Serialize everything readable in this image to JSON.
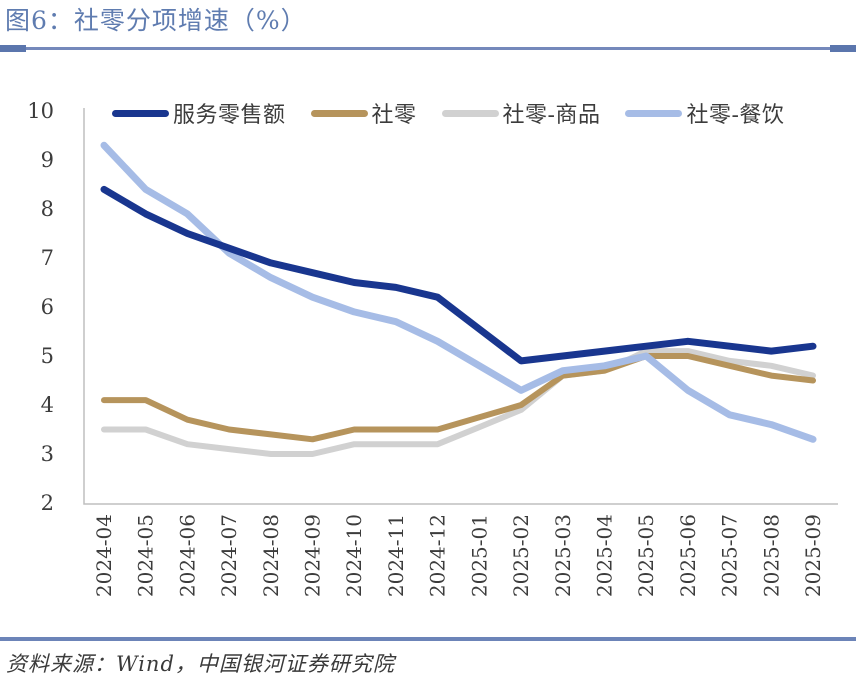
{
  "header": {
    "title": "图6：社零分项增速（%）"
  },
  "footer": {
    "source": "资料来源：Wind，中国银河证券研究院"
  },
  "colors": {
    "title_blue": "#5F7CB0",
    "divider_blue": "#7589BB",
    "divider_accent": "#5B76AD",
    "footer_rule_blue": "#6C84B8",
    "axis_line": "#BFBFBF",
    "tick_text": "#3C3C3C"
  },
  "chart_data": {
    "type": "line",
    "title": "图6：社零分项增速（%）",
    "xlabel": "",
    "ylabel": "",
    "ylim": [
      2,
      10
    ],
    "yticks": [
      2,
      3,
      4,
      5,
      6,
      7,
      8,
      9,
      10
    ],
    "grid": false,
    "legend_position": "top",
    "categories": [
      "2024-04",
      "2024-05",
      "2024-06",
      "2024-07",
      "2024-08",
      "2024-09",
      "2024-10",
      "2024-11",
      "2024-12",
      "2025-01",
      "2025-02",
      "2025-03",
      "2025-04",
      "2025-05",
      "2025-06",
      "2025-07",
      "2025-08",
      "2025-09"
    ],
    "series": [
      {
        "name": "服务零售额",
        "color": "#19368F",
        "values": [
          8.4,
          7.9,
          7.5,
          7.2,
          6.9,
          6.7,
          6.5,
          6.4,
          6.2,
          5.55,
          4.9,
          5.0,
          5.1,
          5.2,
          5.3,
          5.2,
          5.1,
          5.2
        ]
      },
      {
        "name": "社零",
        "color": "#B6945C",
        "values": [
          4.1,
          4.1,
          3.7,
          3.5,
          3.4,
          3.3,
          3.5,
          3.5,
          3.5,
          3.75,
          4.0,
          4.6,
          4.7,
          5.0,
          5.0,
          4.8,
          4.6,
          4.5
        ]
      },
      {
        "name": "社零-商品",
        "color": "#D1D1D1",
        "values": [
          3.5,
          3.5,
          3.2,
          3.1,
          3.0,
          3.0,
          3.2,
          3.2,
          3.2,
          3.55,
          3.9,
          4.6,
          4.7,
          5.1,
          5.1,
          4.9,
          4.8,
          4.6
        ]
      },
      {
        "name": "社零-餐饮",
        "color": "#A6BCE6",
        "values": [
          9.3,
          8.4,
          7.9,
          7.1,
          6.6,
          6.2,
          5.9,
          5.7,
          5.3,
          4.8,
          4.3,
          4.7,
          4.8,
          5.0,
          4.3,
          3.8,
          3.6,
          3.3
        ]
      }
    ]
  }
}
